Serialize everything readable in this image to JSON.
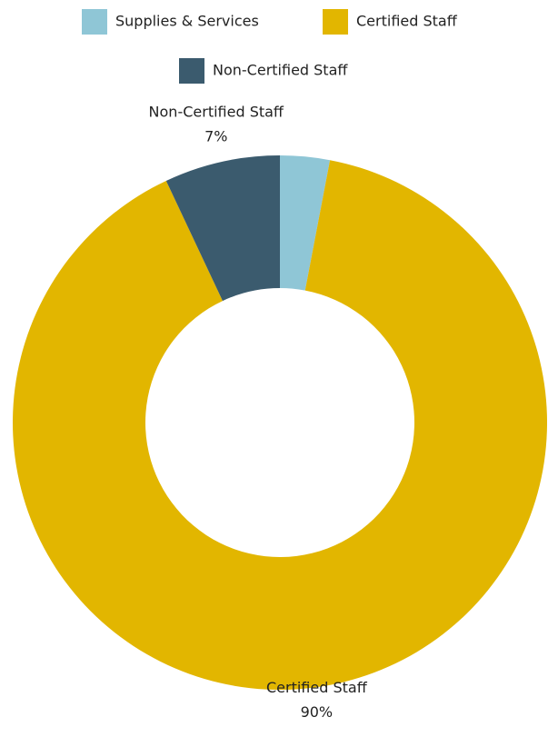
{
  "chart_data": {
    "type": "donut",
    "categories": [
      "Supplies & Services",
      "Certified Staff",
      "Non-Certified Staff"
    ],
    "values": [
      3,
      90,
      7
    ],
    "value_labels": [
      null,
      "90%",
      "7%"
    ],
    "colors": [
      "#8fc6d6",
      "#e2b600",
      "#3b5b6e"
    ],
    "legend": "top"
  }
}
